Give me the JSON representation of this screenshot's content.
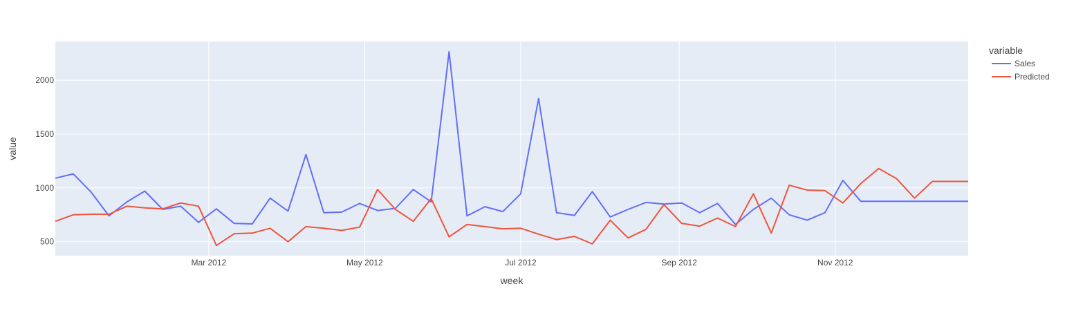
{
  "chart_data": {
    "type": "line",
    "xlabel": "week",
    "ylabel": "value",
    "legend_title": "variable",
    "legend_position": "right",
    "grid": true,
    "x_ticks": [
      "Mar 2012",
      "May 2012",
      "Jul 2012",
      "Sep 2012",
      "Nov 2012"
    ],
    "y_ticks": [
      500,
      1000,
      1500,
      2000
    ],
    "ylim": [
      370,
      2360
    ],
    "xlim": [
      "2012-01-01",
      "2012-12-23"
    ],
    "x": [
      "2012-01-01",
      "2012-01-08",
      "2012-01-15",
      "2012-01-22",
      "2012-01-29",
      "2012-02-05",
      "2012-02-12",
      "2012-02-19",
      "2012-02-26",
      "2012-03-04",
      "2012-03-11",
      "2012-03-18",
      "2012-03-25",
      "2012-04-01",
      "2012-04-08",
      "2012-04-15",
      "2012-04-22",
      "2012-04-29",
      "2012-05-06",
      "2012-05-13",
      "2012-05-20",
      "2012-05-27",
      "2012-06-03",
      "2012-06-10",
      "2012-06-17",
      "2012-06-24",
      "2012-07-01",
      "2012-07-08",
      "2012-07-15",
      "2012-07-22",
      "2012-07-29",
      "2012-08-05",
      "2012-08-12",
      "2012-08-19",
      "2012-08-26",
      "2012-09-02",
      "2012-09-09",
      "2012-09-16",
      "2012-09-23",
      "2012-09-30",
      "2012-10-07",
      "2012-10-14",
      "2012-10-21",
      "2012-10-28",
      "2012-11-04",
      "2012-11-11",
      "2012-11-18",
      "2012-11-25",
      "2012-12-02",
      "2012-12-09",
      "2012-12-16",
      "2012-12-23"
    ],
    "series": [
      {
        "name": "Sales",
        "color": "#636efa",
        "values": [
          1090,
          1130,
          960,
          740,
          870,
          970,
          800,
          830,
          680,
          805,
          670,
          665,
          905,
          785,
          1310,
          770,
          775,
          855,
          790,
          810,
          985,
          870,
          2265,
          740,
          825,
          780,
          945,
          1830,
          770,
          745,
          965,
          730,
          800,
          865,
          850,
          860,
          770,
          855,
          660,
          800,
          905,
          750,
          700,
          770,
          1070,
          875,
          875,
          875,
          875,
          875,
          875,
          875
        ]
      },
      {
        "name": "Predicted",
        "color": "#ef553b",
        "values": [
          690,
          750,
          755,
          755,
          830,
          815,
          805,
          860,
          830,
          465,
          575,
          580,
          625,
          500,
          640,
          625,
          605,
          635,
          985,
          800,
          690,
          900,
          545,
          660,
          640,
          620,
          625,
          570,
          520,
          550,
          480,
          700,
          535,
          615,
          845,
          670,
          645,
          720,
          640,
          945,
          580,
          1025,
          980,
          975,
          860,
          1040,
          1180,
          1085,
          905,
          1060,
          1060,
          1060
        ]
      }
    ]
  }
}
